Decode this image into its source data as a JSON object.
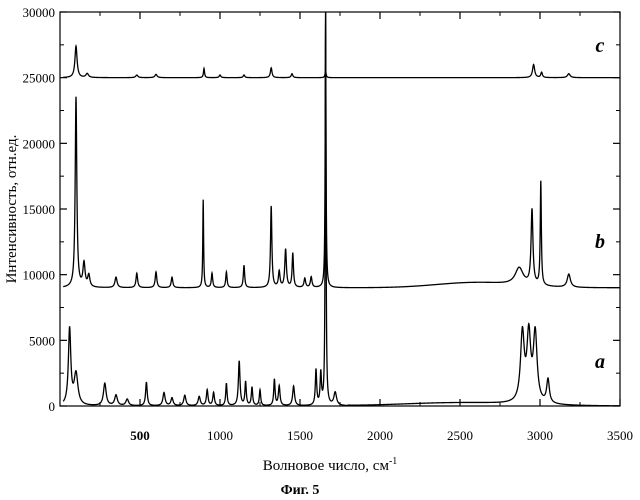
{
  "chart_data": {
    "type": "line",
    "title": "",
    "xlabel": "Волновое число, см",
    "xlabel_sup": "-1",
    "ylabel": "Интенсивность, отн.ед.",
    "xlim": [
      0,
      3500
    ],
    "ylim": [
      0,
      30000
    ],
    "x_ticks": [
      500,
      1000,
      1500,
      2000,
      2500,
      3000,
      3500
    ],
    "x_tick_labels": [
      "500",
      "1000",
      "1500",
      "2000",
      "2500",
      "3000",
      "3500"
    ],
    "y_ticks": [
      0,
      5000,
      10000,
      15000,
      20000,
      25000,
      30000
    ],
    "y_tick_labels": [
      "0",
      "5000",
      "10000",
      "15000",
      "20000",
      "25000",
      "30000"
    ],
    "grid": false,
    "series": [
      {
        "name": "c",
        "baseline": 25000,
        "peaks": [
          [
            100,
            2400,
            8
          ],
          [
            170,
            300,
            10
          ],
          [
            480,
            200,
            8
          ],
          [
            600,
            250,
            8
          ],
          [
            900,
            700,
            4
          ],
          [
            1000,
            200,
            6
          ],
          [
            1150,
            200,
            6
          ],
          [
            1320,
            750,
            6
          ],
          [
            1450,
            300,
            6
          ],
          [
            1660,
            500,
            4
          ],
          [
            2960,
            1000,
            8
          ],
          [
            3010,
            400,
            6
          ],
          [
            3180,
            300,
            10
          ]
        ]
      },
      {
        "name": "b",
        "baseline": 9000,
        "peaks": [
          [
            100,
            14500,
            6
          ],
          [
            150,
            1800,
            8
          ],
          [
            180,
            900,
            8
          ],
          [
            350,
            800,
            8
          ],
          [
            480,
            1100,
            6
          ],
          [
            600,
            1200,
            6
          ],
          [
            700,
            800,
            6
          ],
          [
            895,
            6700,
            3
          ],
          [
            950,
            1100,
            5
          ],
          [
            1040,
            1200,
            5
          ],
          [
            1150,
            1700,
            5
          ],
          [
            1320,
            6200,
            5
          ],
          [
            1370,
            1200,
            6
          ],
          [
            1410,
            2900,
            6
          ],
          [
            1455,
            2600,
            5
          ],
          [
            1530,
            700,
            6
          ],
          [
            1570,
            800,
            6
          ],
          [
            1660,
            21000,
            3
          ],
          [
            2870,
            1300,
            30
          ],
          [
            2950,
            5700,
            7
          ],
          [
            3005,
            7900,
            4
          ],
          [
            3180,
            1000,
            12
          ]
        ]
      },
      {
        "name": "a",
        "baseline": 0,
        "peaks": [
          [
            60,
            5800,
            9
          ],
          [
            100,
            2400,
            14
          ],
          [
            280,
            1700,
            10
          ],
          [
            350,
            800,
            10
          ],
          [
            420,
            500,
            10
          ],
          [
            540,
            1800,
            6
          ],
          [
            650,
            1000,
            8
          ],
          [
            700,
            600,
            8
          ],
          [
            780,
            800,
            8
          ],
          [
            870,
            700,
            8
          ],
          [
            920,
            1200,
            6
          ],
          [
            960,
            1000,
            6
          ],
          [
            1040,
            1700,
            5
          ],
          [
            1120,
            3400,
            6
          ],
          [
            1160,
            1800,
            5
          ],
          [
            1200,
            1400,
            5
          ],
          [
            1250,
            1200,
            5
          ],
          [
            1340,
            2000,
            5
          ],
          [
            1370,
            1500,
            6
          ],
          [
            1460,
            1500,
            7
          ],
          [
            1600,
            2700,
            5
          ],
          [
            1630,
            2400,
            5
          ],
          [
            1660,
            30000,
            3
          ],
          [
            1720,
            1000,
            10
          ],
          [
            2890,
            5200,
            14
          ],
          [
            2930,
            5000,
            14
          ],
          [
            2970,
            5200,
            14
          ],
          [
            3050,
            1800,
            10
          ]
        ]
      }
    ]
  },
  "figure": {
    "caption": "Фиг. 5"
  }
}
